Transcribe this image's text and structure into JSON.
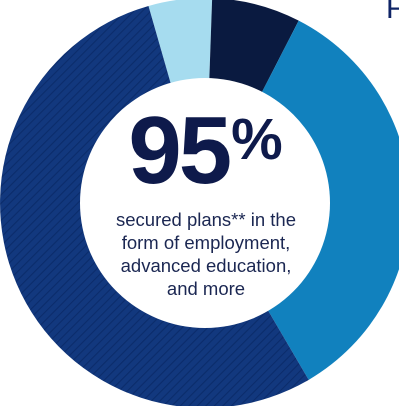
{
  "header_fragment": "F",
  "stat": {
    "number": "95",
    "percent_sign": "%"
  },
  "caption": [
    "secured plans** in the",
    "form of employment,",
    "advanced education,",
    "and more"
  ],
  "chart_data": {
    "type": "pie",
    "style": "donut",
    "title": "",
    "center_label": "95%",
    "slices": [
      {
        "value": 5,
        "color": "#a6dcef",
        "pattern": "solid"
      },
      {
        "value": 7,
        "color": "#0a1a40",
        "pattern": "solid"
      },
      {
        "value": 34,
        "color": "#1181be",
        "pattern": "solid"
      },
      {
        "value": 54,
        "color": "#12387e",
        "pattern": "diagonal-hatch"
      }
    ],
    "start_angle_deg": 344,
    "direction": "clockwise",
    "legend": "none"
  }
}
